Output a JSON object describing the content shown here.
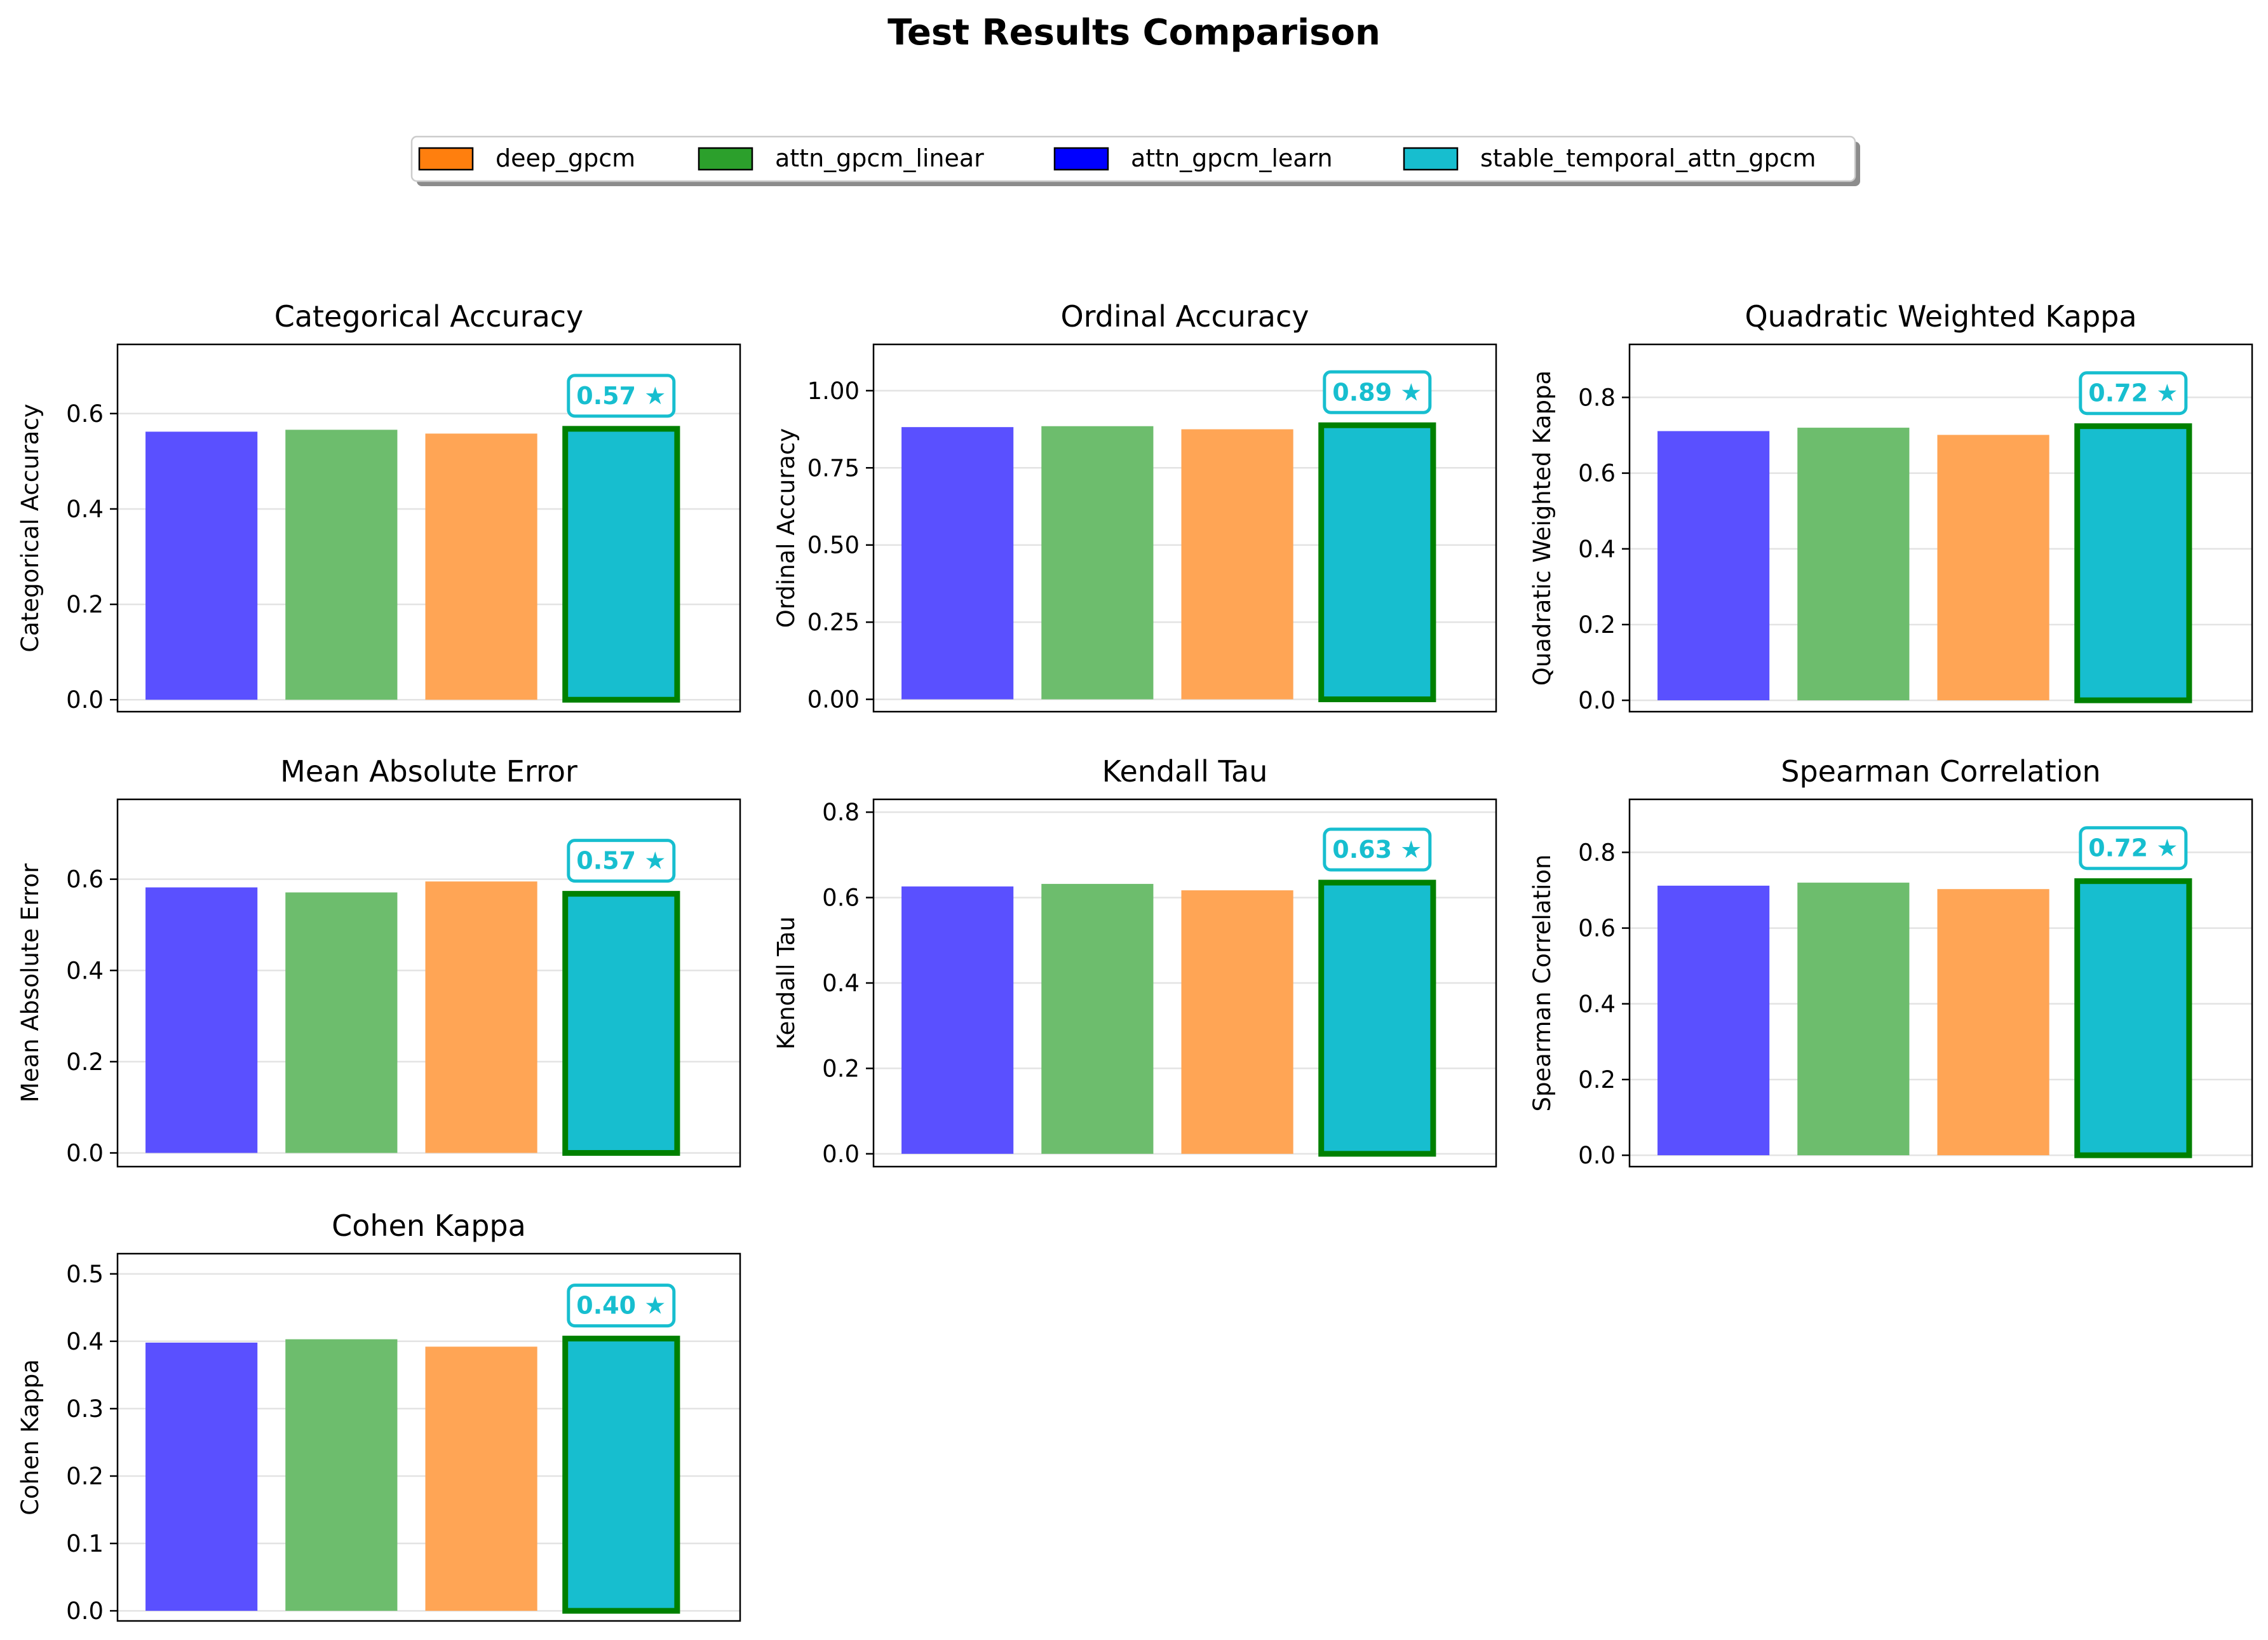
{
  "figure": {
    "title": "Test Results Comparison"
  },
  "legend": {
    "placement": "top-center",
    "entries": [
      {
        "name": "deep_gpcm",
        "color": "#ff7f0e"
      },
      {
        "name": "attn_gpcm_linear",
        "color": "#2ca02c"
      },
      {
        "name": "attn_gpcm_learn",
        "color": "#0000ff"
      },
      {
        "name": "stable_temporal_attn_gpcm",
        "color": "#17becf"
      }
    ]
  },
  "colors": {
    "bar_colors": [
      "#5a50ff",
      "#6dbd6d",
      "#ffa555",
      "#17becf"
    ],
    "best_outline": "#008000",
    "best_label": "#17becf"
  },
  "chart_data": [
    {
      "type": "bar",
      "title": "Categorical Accuracy",
      "ylabel": "Categorical Accuracy",
      "values": [
        0.562,
        0.566,
        0.558,
        0.568
      ],
      "ylim": [
        -0.025,
        0.745
      ],
      "yticks": [
        0.0,
        0.2,
        0.4,
        0.6
      ],
      "ytick_labels": [
        "0.0",
        "0.2",
        "0.4",
        "0.6"
      ],
      "best_index": 3,
      "best_label": "0.57 ★",
      "grid": true
    },
    {
      "type": "bar",
      "title": "Ordinal Accuracy",
      "ylabel": "Ordinal Accuracy",
      "values": [
        0.882,
        0.885,
        0.875,
        0.888
      ],
      "ylim": [
        -0.04,
        1.15
      ],
      "yticks": [
        0.0,
        0.25,
        0.5,
        0.75,
        1.0
      ],
      "ytick_labels": [
        "0.00",
        "0.25",
        "0.50",
        "0.75",
        "1.00"
      ],
      "best_index": 3,
      "best_label": "0.89 ★",
      "grid": true
    },
    {
      "type": "bar",
      "title": "Quadratic Weighted Kappa",
      "ylabel": "Quadratic Weighted Kappa",
      "values": [
        0.711,
        0.72,
        0.701,
        0.724
      ],
      "ylim": [
        -0.03,
        0.94
      ],
      "yticks": [
        0.0,
        0.2,
        0.4,
        0.6,
        0.8
      ],
      "ytick_labels": [
        "0.0",
        "0.2",
        "0.4",
        "0.6",
        "0.8"
      ],
      "best_index": 3,
      "best_label": "0.72 ★",
      "grid": true
    },
    {
      "type": "bar",
      "title": "Mean Absolute Error",
      "ylabel": "Mean Absolute Error",
      "values": [
        0.582,
        0.571,
        0.595,
        0.568
      ],
      "ylim": [
        -0.03,
        0.775
      ],
      "yticks": [
        0.0,
        0.2,
        0.4,
        0.6
      ],
      "ytick_labels": [
        "0.0",
        "0.2",
        "0.4",
        "0.6"
      ],
      "best_index": 3,
      "best_label": "0.57 ★",
      "grid": true
    },
    {
      "type": "bar",
      "title": "Kendall Tau",
      "ylabel": "Kendall Tau",
      "values": [
        0.626,
        0.632,
        0.617,
        0.635
      ],
      "ylim": [
        -0.03,
        0.83
      ],
      "yticks": [
        0.0,
        0.2,
        0.4,
        0.6,
        0.8
      ],
      "ytick_labels": [
        "0.0",
        "0.2",
        "0.4",
        "0.6",
        "0.8"
      ],
      "best_index": 3,
      "best_label": "0.63 ★",
      "grid": true
    },
    {
      "type": "bar",
      "title": "Spearman Correlation",
      "ylabel": "Spearman Correlation",
      "values": [
        0.712,
        0.72,
        0.703,
        0.724
      ],
      "ylim": [
        -0.03,
        0.94
      ],
      "yticks": [
        0.0,
        0.2,
        0.4,
        0.6,
        0.8
      ],
      "ytick_labels": [
        "0.0",
        "0.2",
        "0.4",
        "0.6",
        "0.8"
      ],
      "best_index": 3,
      "best_label": "0.72 ★",
      "grid": true
    },
    {
      "type": "bar",
      "title": "Cohen Kappa",
      "ylabel": "Cohen Kappa",
      "values": [
        0.398,
        0.403,
        0.392,
        0.404
      ],
      "ylim": [
        -0.015,
        0.53
      ],
      "yticks": [
        0.0,
        0.1,
        0.2,
        0.3,
        0.4,
        0.5
      ],
      "ytick_labels": [
        "0.0",
        "0.1",
        "0.2",
        "0.3",
        "0.4",
        "0.5"
      ],
      "best_index": 3,
      "best_label": "0.40 ★",
      "grid": true
    }
  ]
}
